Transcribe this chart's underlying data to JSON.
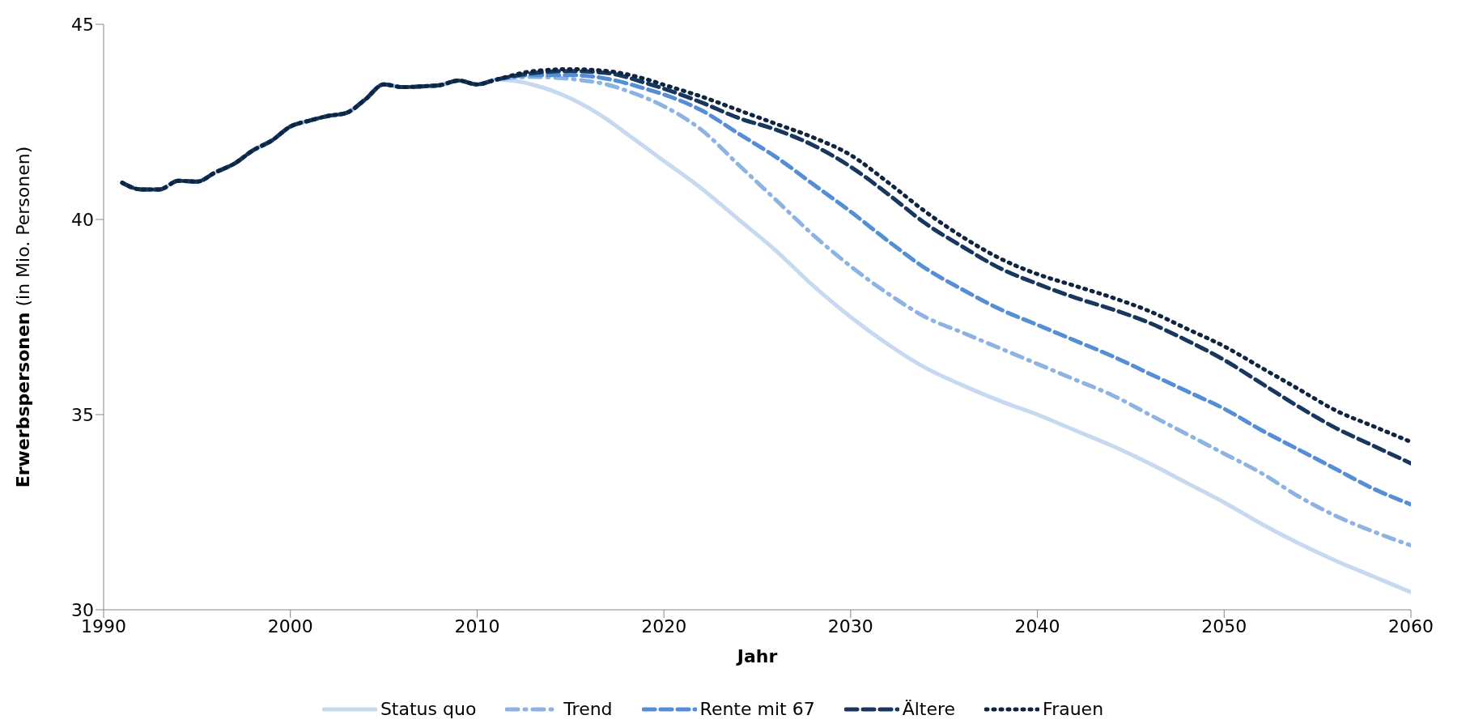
{
  "chart_data": {
    "type": "line",
    "xlabel": "Jahr",
    "ylabel": "Erwerbspersonen (in Mio. Personen)",
    "xlim": [
      1990,
      2060
    ],
    "xticks": [
      1990,
      2000,
      2010,
      2020,
      2030,
      2040,
      2050,
      2060
    ],
    "ylim": [
      30,
      45
    ],
    "yticks": [
      30,
      35,
      40,
      45
    ],
    "grid": false,
    "legend": "bottom",
    "marker": "none",
    "series": [
      {
        "name": "Status quo",
        "color": "#c6d9f1",
        "line_style": "solid",
        "x": [
          1991,
          1992,
          1993,
          1994,
          1995,
          1996,
          1997,
          1998,
          1999,
          2000,
          2001,
          2002,
          2003,
          2004,
          2005,
          2006,
          2007,
          2008,
          2009,
          2010,
          2011,
          2012,
          2013,
          2014,
          2015,
          2016,
          2017,
          2018,
          2019,
          2020,
          2022,
          2024,
          2026,
          2028,
          2030,
          2032,
          2034,
          2036,
          2038,
          2040,
          2042,
          2044,
          2046,
          2048,
          2050,
          2052,
          2054,
          2056,
          2058,
          2060
        ],
        "values": [
          40.94,
          40.77,
          40.77,
          40.99,
          40.97,
          41.21,
          41.43,
          41.77,
          42.02,
          42.38,
          42.53,
          42.65,
          42.73,
          43.07,
          43.46,
          43.39,
          43.41,
          43.44,
          43.56,
          43.46,
          43.58,
          43.55,
          43.45,
          43.3,
          43.1,
          42.85,
          42.55,
          42.2,
          41.85,
          41.5,
          40.8,
          40.0,
          39.2,
          38.3,
          37.5,
          36.8,
          36.2,
          35.75,
          35.35,
          35.0,
          34.6,
          34.2,
          33.75,
          33.25,
          32.75,
          32.2,
          31.7,
          31.25,
          30.85,
          30.45
        ]
      },
      {
        "name": "Trend",
        "color": "#8db3e2",
        "line_style": "dashdot",
        "x": [
          1991,
          1992,
          1993,
          1994,
          1995,
          1996,
          1997,
          1998,
          1999,
          2000,
          2001,
          2002,
          2003,
          2004,
          2005,
          2006,
          2007,
          2008,
          2009,
          2010,
          2011,
          2013,
          2015,
          2017,
          2018,
          2020,
          2022,
          2024,
          2026,
          2028,
          2030,
          2032,
          2034,
          2036,
          2038,
          2040,
          2042,
          2044,
          2046,
          2048,
          2050,
          2052,
          2054,
          2056,
          2058,
          2060
        ],
        "values": [
          40.94,
          40.77,
          40.77,
          40.99,
          40.97,
          41.21,
          41.43,
          41.77,
          42.02,
          42.38,
          42.53,
          42.65,
          42.73,
          43.07,
          43.46,
          43.39,
          43.41,
          43.44,
          43.56,
          43.46,
          43.58,
          43.65,
          43.6,
          43.45,
          43.3,
          42.9,
          42.3,
          41.4,
          40.5,
          39.6,
          38.8,
          38.1,
          37.5,
          37.1,
          36.7,
          36.3,
          35.9,
          35.5,
          35.0,
          34.5,
          34.0,
          33.5,
          32.9,
          32.4,
          32.0,
          31.65
        ]
      },
      {
        "name": "Rente mit 67",
        "color": "#558ed5",
        "line_style": "dashed",
        "x": [
          1991,
          1992,
          1993,
          1994,
          1995,
          1996,
          1997,
          1998,
          1999,
          2000,
          2001,
          2002,
          2003,
          2004,
          2005,
          2006,
          2007,
          2008,
          2009,
          2010,
          2011,
          2013,
          2015,
          2017,
          2019,
          2020,
          2022,
          2024,
          2026,
          2028,
          2030,
          2032,
          2034,
          2036,
          2038,
          2040,
          2042,
          2044,
          2046,
          2048,
          2050,
          2052,
          2054,
          2056,
          2058,
          2060
        ],
        "values": [
          40.94,
          40.77,
          40.77,
          40.99,
          40.97,
          41.21,
          41.43,
          41.77,
          42.02,
          42.38,
          42.53,
          42.65,
          42.73,
          43.07,
          43.46,
          43.39,
          43.41,
          43.44,
          43.56,
          43.46,
          43.58,
          43.7,
          43.7,
          43.6,
          43.35,
          43.2,
          42.8,
          42.2,
          41.6,
          40.9,
          40.2,
          39.45,
          38.75,
          38.2,
          37.7,
          37.3,
          36.9,
          36.5,
          36.05,
          35.6,
          35.15,
          34.6,
          34.1,
          33.6,
          33.1,
          32.7
        ]
      },
      {
        "name": "Ältere",
        "color": "#17375e",
        "line_style": "dashed",
        "x": [
          1991,
          1992,
          1993,
          1994,
          1995,
          1996,
          1997,
          1998,
          1999,
          2000,
          2001,
          2002,
          2003,
          2004,
          2005,
          2006,
          2007,
          2008,
          2009,
          2010,
          2011,
          2013,
          2015,
          2017,
          2019,
          2020,
          2022,
          2024,
          2026,
          2028,
          2030,
          2032,
          2034,
          2036,
          2038,
          2040,
          2042,
          2044,
          2046,
          2048,
          2050,
          2052,
          2054,
          2056,
          2058,
          2060
        ],
        "values": [
          40.94,
          40.77,
          40.77,
          40.99,
          40.97,
          41.21,
          41.43,
          41.77,
          42.02,
          42.38,
          42.53,
          42.65,
          42.73,
          43.07,
          43.46,
          43.39,
          43.41,
          43.44,
          43.56,
          43.46,
          43.58,
          43.75,
          43.8,
          43.75,
          43.5,
          43.35,
          43.0,
          42.6,
          42.3,
          41.9,
          41.35,
          40.65,
          39.9,
          39.3,
          38.75,
          38.35,
          38.0,
          37.7,
          37.35,
          36.9,
          36.4,
          35.8,
          35.2,
          34.65,
          34.2,
          33.75
        ]
      },
      {
        "name": "Frauen",
        "color": "#0f243e",
        "line_style": "dotted",
        "x": [
          1991,
          1992,
          1993,
          1994,
          1995,
          1996,
          1997,
          1998,
          1999,
          2000,
          2001,
          2002,
          2003,
          2004,
          2005,
          2006,
          2007,
          2008,
          2009,
          2010,
          2011,
          2013,
          2015,
          2017,
          2019,
          2020,
          2022,
          2024,
          2026,
          2028,
          2030,
          2032,
          2034,
          2036,
          2038,
          2040,
          2042,
          2044,
          2046,
          2048,
          2050,
          2052,
          2054,
          2056,
          2058,
          2060
        ],
        "values": [
          40.94,
          40.77,
          40.77,
          40.99,
          40.97,
          41.21,
          41.43,
          41.77,
          42.02,
          42.38,
          42.53,
          42.65,
          42.73,
          43.07,
          43.46,
          43.39,
          43.41,
          43.44,
          43.56,
          43.46,
          43.58,
          43.8,
          43.85,
          43.8,
          43.6,
          43.45,
          43.15,
          42.8,
          42.45,
          42.1,
          41.65,
          40.95,
          40.2,
          39.55,
          39.0,
          38.6,
          38.3,
          38.0,
          37.65,
          37.2,
          36.75,
          36.2,
          35.65,
          35.1,
          34.7,
          34.3
        ]
      }
    ]
  }
}
